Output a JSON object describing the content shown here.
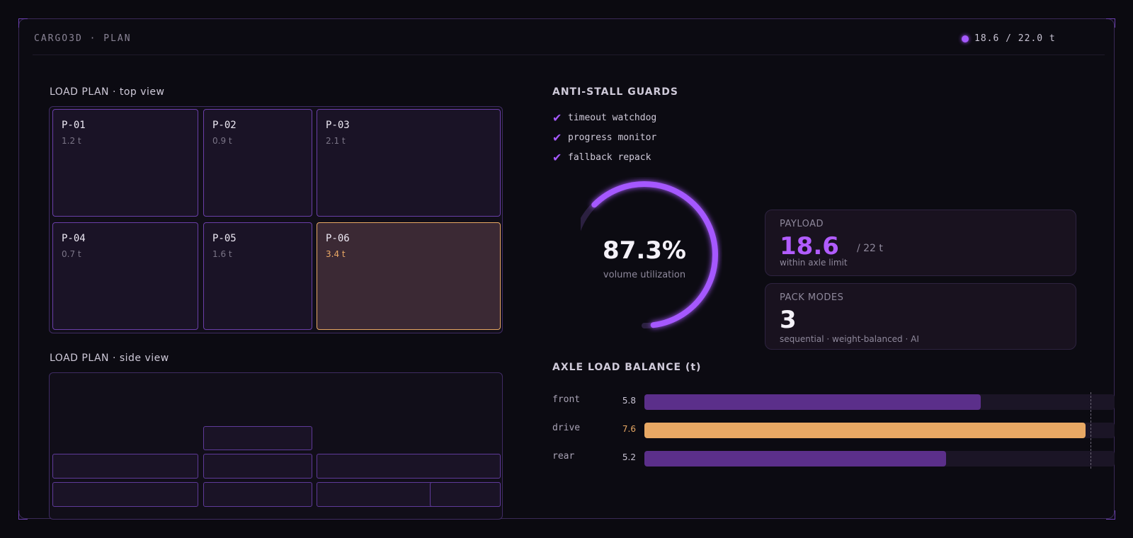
{
  "header": {
    "title": "CARGO3D · PLAN",
    "status": "18.6 / 22.0 t"
  },
  "top_view": {
    "title": "LOAD PLAN · top view",
    "pallets": [
      {
        "id": "P-01",
        "weight": "1.2 t"
      },
      {
        "id": "P-02",
        "weight": "0.9 t"
      },
      {
        "id": "P-03",
        "weight": "2.1 t"
      },
      {
        "id": "P-04",
        "weight": "0.7 t"
      },
      {
        "id": "P-05",
        "weight": "1.6 t"
      },
      {
        "id": "P-06",
        "weight": "3.4 t"
      }
    ]
  },
  "side_view": {
    "title": "LOAD PLAN · side view"
  },
  "guards": {
    "title": "ANTI-STALL GUARDS",
    "items": [
      "timeout watchdog",
      "progress monitor",
      "fallback repack"
    ]
  },
  "gauge": {
    "value": "87.3%",
    "label": "volume utilization",
    "fraction": 0.873
  },
  "payload": {
    "label": "PAYLOAD",
    "value": "18.6",
    "max": "/ 22 t",
    "sub": "within axle limit"
  },
  "modes": {
    "label": "PACK MODES",
    "value": "3",
    "sub": "sequential · weight-balanced · AI"
  },
  "axles": {
    "title": "AXLE LOAD BALANCE (t)",
    "scale_max": 8.1,
    "rows": [
      {
        "name": "front",
        "value": "5.8",
        "load": 5.8
      },
      {
        "name": "drive",
        "value": "7.6",
        "load": 7.6
      },
      {
        "name": "rear",
        "value": "5.2",
        "load": 5.2
      }
    ]
  },
  "colors": {
    "accent": "#a559ff",
    "warning": "#e8a864",
    "bar_default": "#5b2f8a"
  }
}
